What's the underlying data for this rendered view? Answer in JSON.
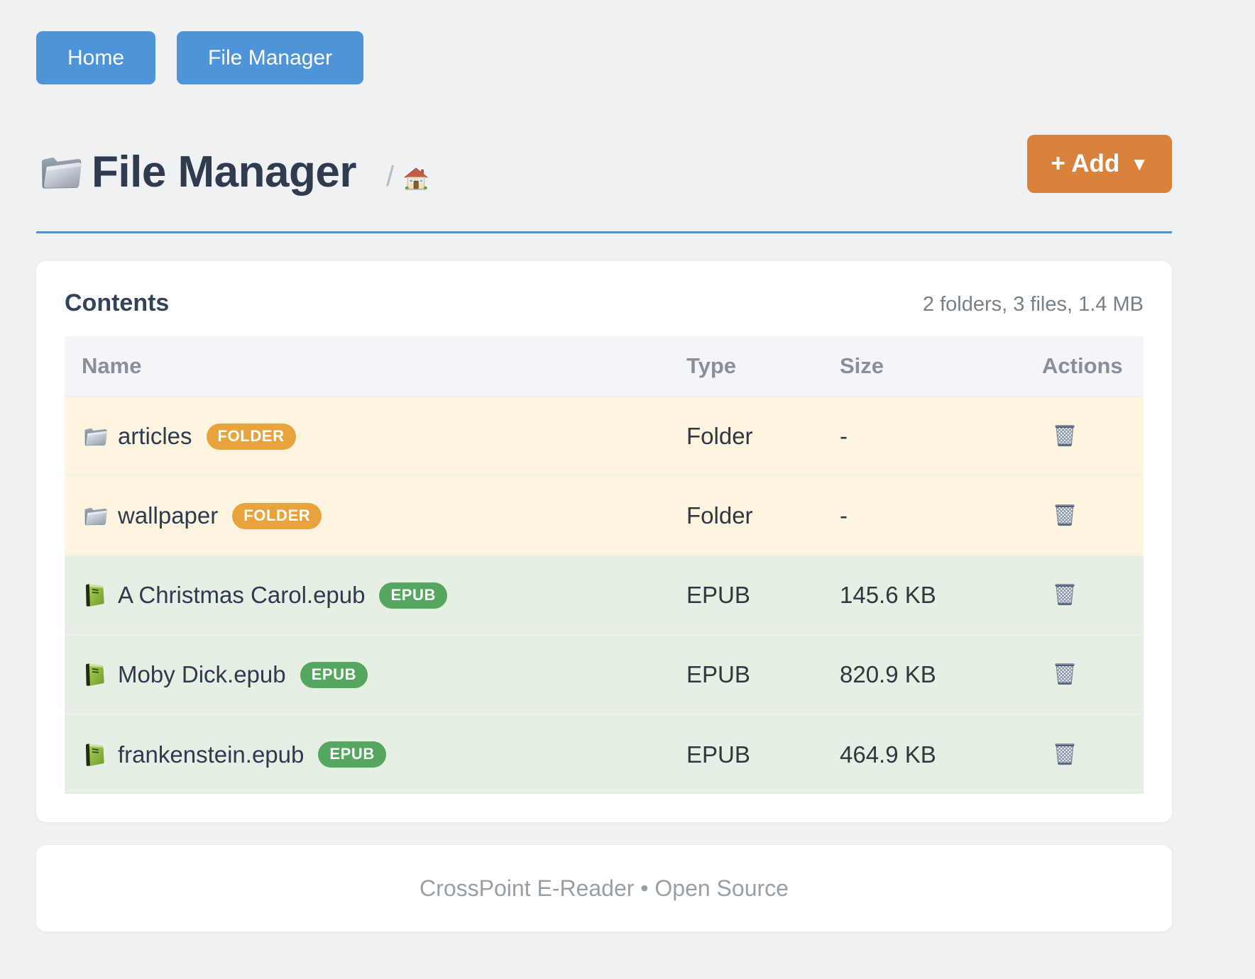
{
  "nav": {
    "home_label": "Home",
    "file_manager_label": "File Manager"
  },
  "header": {
    "title": "File Manager",
    "title_icon": "folder-icon",
    "breadcrumb_separator": "/",
    "breadcrumb_home_icon": "home-icon",
    "add_button_label": "+ Add",
    "add_button_caret": "▼"
  },
  "contents": {
    "heading": "Contents",
    "summary": "2 folders, 3 files, 1.4 MB"
  },
  "table": {
    "columns": [
      "Name",
      "Type",
      "Size",
      "Actions"
    ],
    "rows": [
      {
        "kind": "folder",
        "icon": "folder-icon",
        "name": "articles",
        "badge": "FOLDER",
        "type": "Folder",
        "size": "-",
        "action_icon": "trash-icon"
      },
      {
        "kind": "folder",
        "icon": "folder-icon",
        "name": "wallpaper",
        "badge": "FOLDER",
        "type": "Folder",
        "size": "-",
        "action_icon": "trash-icon"
      },
      {
        "kind": "epub",
        "icon": "book-icon",
        "name": "A Christmas Carol.epub",
        "badge": "EPUB",
        "type": "EPUB",
        "size": "145.6 KB",
        "action_icon": "trash-icon"
      },
      {
        "kind": "epub",
        "icon": "book-icon",
        "name": "Moby Dick.epub",
        "badge": "EPUB",
        "type": "EPUB",
        "size": "820.9 KB",
        "action_icon": "trash-icon"
      },
      {
        "kind": "epub",
        "icon": "book-icon",
        "name": "frankenstein.epub",
        "badge": "EPUB",
        "type": "EPUB",
        "size": "464.9 KB",
        "action_icon": "trash-icon"
      }
    ]
  },
  "footer": {
    "text": "CrossPoint E-Reader • Open Source"
  },
  "colors": {
    "page_bg": "#F0F1F2",
    "accent_blue": "#4E94D9",
    "rule_blue": "#4B91D9",
    "accent_orange": "#D9823C",
    "badge_folder_orange": "#E8A33D",
    "badge_epub_green": "#55A65F",
    "row_folder_bg": "#FCF4DE",
    "row_epub_bg": "#E6EFE4",
    "title_color": "#2F3C50"
  }
}
